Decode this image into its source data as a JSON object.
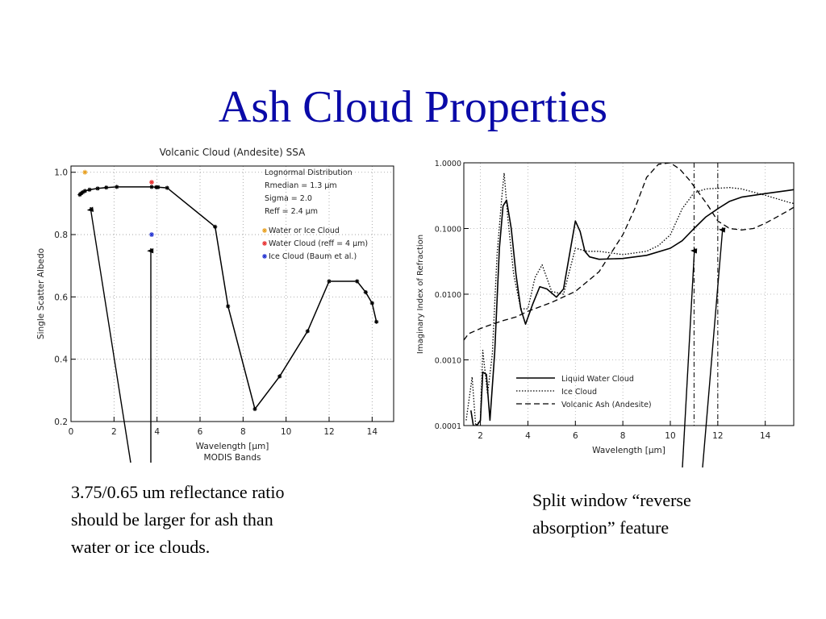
{
  "slide": {
    "title": "Ash Cloud Properties",
    "caption_left_lines": [
      "3.75/0.65 um reflectance ratio",
      "should be larger for ash than",
      "water or ice clouds."
    ],
    "caption_right_lines": [
      "Split window “reverse",
      "absorption” feature"
    ]
  },
  "chart_data": [
    {
      "type": "line",
      "title": "Volcanic Cloud (Andesite) SSA",
      "xlabel": "Wavelength [μm]",
      "xlabel2": "MODIS Bands",
      "ylabel": "Single Scatter Albedo",
      "xlim": [
        0,
        15
      ],
      "ylim": [
        0.2,
        1.02
      ],
      "xticks": [
        0,
        2,
        4,
        6,
        8,
        10,
        12,
        14
      ],
      "yticks": [
        0.2,
        0.4,
        0.6,
        0.8,
        1.0
      ],
      "ytick_labels": [
        "0.2",
        "0.4",
        "0.6",
        "0.8",
        "1.0"
      ],
      "grid": true,
      "annotation_lines": [
        "Lognormal Distribution",
        "Rmedian = 1.3 μm",
        "Sigma = 2.0",
        "Reff = 2.4 μm"
      ],
      "series": [
        {
          "name": "Volcanic Cloud (Andesite)",
          "color": "#000000",
          "x": [
            0.41,
            0.47,
            0.55,
            0.65,
            0.86,
            1.24,
            1.64,
            2.13,
            3.75,
            3.96,
            4.05,
            4.47,
            6.7,
            7.3,
            8.55,
            9.7,
            11.0,
            12.0,
            13.3,
            13.7,
            14.0,
            14.2
          ],
          "y": [
            0.928,
            0.932,
            0.936,
            0.94,
            0.944,
            0.948,
            0.951,
            0.953,
            0.953,
            0.952,
            0.952,
            0.95,
            0.825,
            0.57,
            0.24,
            0.345,
            0.49,
            0.65,
            0.65,
            0.615,
            0.58,
            0.52
          ]
        },
        {
          "name": "Water or Ice Cloud",
          "color": "#e8a020",
          "x": [
            0.65
          ],
          "y": [
            1.0
          ]
        },
        {
          "name": "Water Cloud (reff = 4 μm)",
          "color": "#e83030",
          "x": [
            3.75
          ],
          "y": [
            0.968
          ]
        },
        {
          "name": "Ice Cloud (Baum et al.)",
          "color": "#2030d0",
          "x": [
            3.75
          ],
          "y": [
            0.8
          ]
        }
      ],
      "legend": "top-right"
    },
    {
      "type": "line",
      "xlabel": "Wavelength [μm]",
      "ylabel": "Imaginary Index of Refraction",
      "xlim": [
        1.3,
        15.2
      ],
      "ylim": [
        0.0001,
        1.0
      ],
      "yscale": "log",
      "xticks": [
        2,
        4,
        6,
        8,
        10,
        12,
        14
      ],
      "yticks": [
        0.0001,
        0.001,
        0.01,
        0.1,
        1.0
      ],
      "ytick_labels": [
        "0.0001",
        "0.0010",
        "0.0100",
        "0.1000",
        "1.0000"
      ],
      "grid": true,
      "vlines": [
        11.0,
        12.0
      ],
      "series": [
        {
          "name": "Liquid Water Cloud",
          "style": "solid",
          "x": [
            1.6,
            1.7,
            1.85,
            2.0,
            2.1,
            2.25,
            2.4,
            2.6,
            2.8,
            2.95,
            3.1,
            3.3,
            3.5,
            3.7,
            3.9,
            4.2,
            4.5,
            4.8,
            5.2,
            5.5,
            5.8,
            6.0,
            6.2,
            6.4,
            6.6,
            7.0,
            8.0,
            9.0,
            10.0,
            10.5,
            11.0,
            11.5,
            12.0,
            12.5,
            13.0,
            14.0,
            15.0,
            15.2
          ],
          "y": [
            0.00017,
            0.0001,
            0.0001,
            0.00012,
            0.00065,
            0.0006,
            0.00012,
            0.0013,
            0.05,
            0.22,
            0.27,
            0.1,
            0.02,
            0.006,
            0.0035,
            0.007,
            0.013,
            0.012,
            0.009,
            0.012,
            0.05,
            0.13,
            0.09,
            0.045,
            0.037,
            0.034,
            0.035,
            0.039,
            0.05,
            0.065,
            0.1,
            0.15,
            0.2,
            0.26,
            0.3,
            0.34,
            0.38,
            0.39
          ]
        },
        {
          "name": "Ice Cloud",
          "style": "dotted",
          "x": [
            1.4,
            1.55,
            1.65,
            1.8,
            2.0,
            2.1,
            2.3,
            2.5,
            2.7,
            2.9,
            3.0,
            3.15,
            3.4,
            3.7,
            4.0,
            4.3,
            4.6,
            5.0,
            5.5,
            6.0,
            6.5,
            7.0,
            8.0,
            9.0,
            9.5,
            10.0,
            10.5,
            11.0,
            11.5,
            12.0,
            12.5,
            13.0,
            14.0,
            15.0,
            15.2
          ],
          "y": [
            0.00012,
            0.0003,
            0.00055,
            0.0001,
            0.00012,
            0.0014,
            0.0003,
            0.0012,
            0.04,
            0.3,
            0.7,
            0.15,
            0.02,
            0.006,
            0.006,
            0.018,
            0.028,
            0.011,
            0.01,
            0.05,
            0.045,
            0.045,
            0.04,
            0.045,
            0.055,
            0.08,
            0.2,
            0.35,
            0.4,
            0.41,
            0.42,
            0.4,
            0.32,
            0.25,
            0.24
          ]
        },
        {
          "name": "Volcanic Ash (Andesite)",
          "style": "dashed",
          "x": [
            1.3,
            1.5,
            2.0,
            2.5,
            3.0,
            3.5,
            4.0,
            5.0,
            6.0,
            7.0,
            8.0,
            8.5,
            9.0,
            9.5,
            10.0,
            10.4,
            10.8,
            11.2,
            11.6,
            12.0,
            12.5,
            13.0,
            13.5,
            14.0,
            14.5,
            15.0,
            15.2
          ],
          "y": [
            0.002,
            0.0025,
            0.003,
            0.0035,
            0.004,
            0.0045,
            0.0055,
            0.0075,
            0.011,
            0.022,
            0.08,
            0.2,
            0.6,
            0.95,
            1.0,
            0.8,
            0.55,
            0.35,
            0.22,
            0.13,
            0.1,
            0.095,
            0.1,
            0.12,
            0.15,
            0.19,
            0.21
          ]
        }
      ],
      "legend": "bottom-right"
    }
  ]
}
